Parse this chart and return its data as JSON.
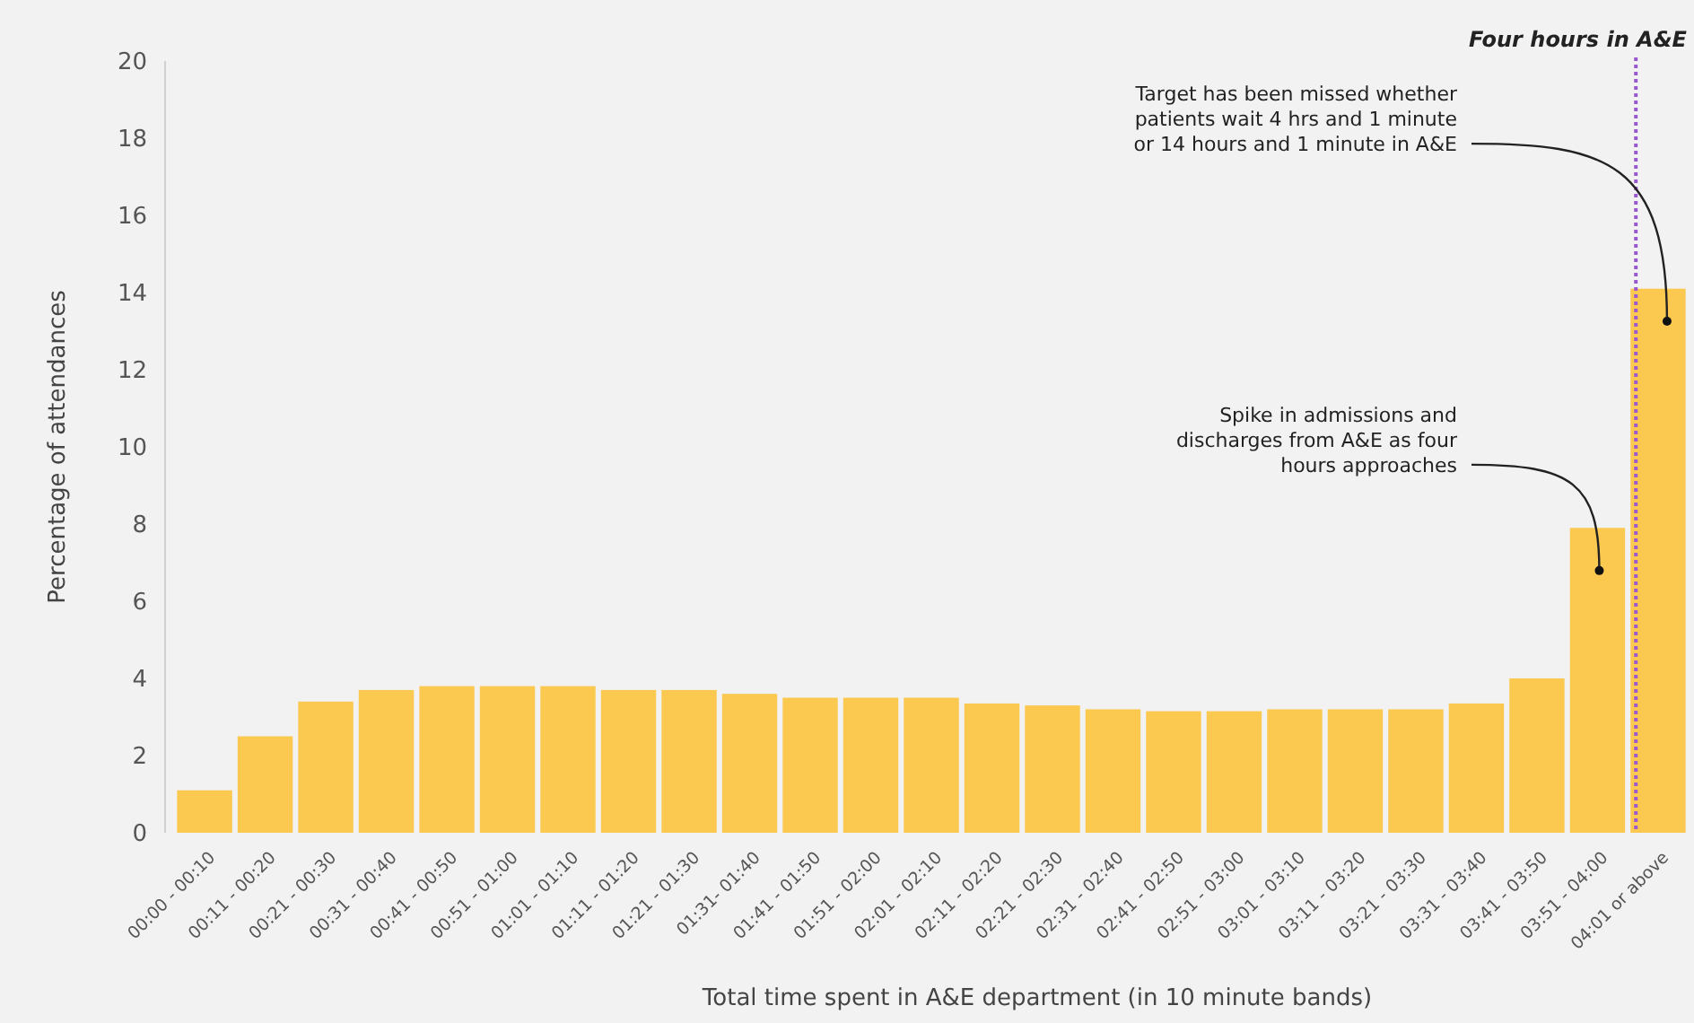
{
  "chart_data": {
    "type": "bar",
    "xlabel": "Total time spent in A&E department (in 10 minute bands)",
    "ylabel": "Percentage of attendances",
    "categories": [
      "00:00 - 00:10",
      "00:11 - 00:20",
      "00:21 - 00:30",
      "00:31 - 00:40",
      "00:41 - 00:50",
      "00:51 - 01:00",
      "01:01 - 01:10",
      "01:11 - 01:20",
      "01:21 - 01:30",
      "01:31- 01:40",
      "01:41 - 01:50",
      "01:51 - 02:00",
      "02:01 - 02:10",
      "02:11 - 02:20",
      "02:21 - 02:30",
      "02:31 - 02:40",
      "02:41 - 02:50",
      "02:51 - 03:00",
      "03:01 - 03:10",
      "03:11 - 03:20",
      "03:21 - 03:30",
      "03:31 - 03:40",
      "03:41 - 03:50",
      "03:51 - 04:00",
      "04:01 or above"
    ],
    "values": [
      1.1,
      2.5,
      3.4,
      3.7,
      3.8,
      3.8,
      3.8,
      3.7,
      3.7,
      3.6,
      3.5,
      3.5,
      3.5,
      3.35,
      3.3,
      3.2,
      3.15,
      3.15,
      3.2,
      3.2,
      3.2,
      3.35,
      4.0,
      7.9,
      14.1
    ],
    "color": "#fbc850",
    "ylim": [
      0,
      20
    ],
    "yticks": [
      0,
      2,
      4,
      6,
      8,
      10,
      12,
      14,
      16,
      18,
      20
    ],
    "grid": false,
    "ref_lines": [
      {
        "axis": "x",
        "value": "04:01 or above",
        "label": "Four hours in A&E",
        "color": "#9b59d0",
        "line_style": "dotted"
      }
    ],
    "annotations": [
      "Target has been missed whether patients wait 4 hrs and 1 minute or 14 hours and 1 minute in A&E",
      "Spike in admissions and discharges from A&E as four hours approaches"
    ]
  }
}
